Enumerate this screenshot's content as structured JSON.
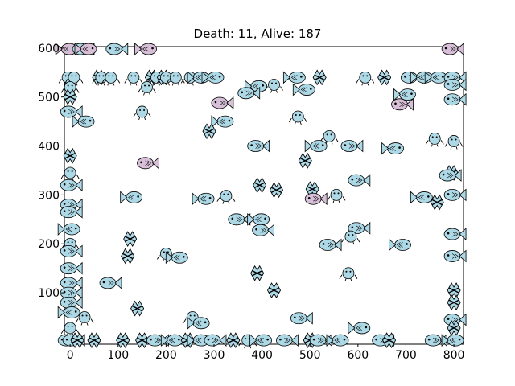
{
  "title": "Death: 11, Alive: 187",
  "axes": {
    "x_ticks": [
      0,
      100,
      200,
      300,
      400,
      500,
      600,
      700,
      800
    ],
    "y_ticks": [
      100,
      200,
      300,
      400,
      500,
      600
    ],
    "xlim": [
      -12,
      820
    ],
    "ylim": [
      -5,
      603
    ]
  },
  "colors": {
    "fish_body": "#add8e6",
    "fish_dead": "#d8bfd8",
    "fish_outline": "#000000",
    "axis": "#000000",
    "background": "#ffffff"
  },
  "chart_data": {
    "type": "scatter",
    "agents": [
      {
        "kind": "fish",
        "x": -5,
        "y": 598,
        "dir": "L",
        "state": "dead"
      },
      {
        "kind": "fish",
        "x": 25,
        "y": 598,
        "dir": "R",
        "state": "alive"
      },
      {
        "kind": "fish",
        "x": 35,
        "y": 598,
        "dir": "L",
        "state": "dead"
      },
      {
        "kind": "fish",
        "x": 95,
        "y": 598,
        "dir": "R",
        "state": "alive"
      },
      {
        "kind": "fish",
        "x": 160,
        "y": 598,
        "dir": "L",
        "state": "dead"
      },
      {
        "kind": "fish",
        "x": 795,
        "y": 598,
        "dir": "R",
        "state": "dead"
      },
      {
        "kind": "crab",
        "x": -5,
        "y": 540
      },
      {
        "kind": "crab",
        "x": 8,
        "y": 540
      },
      {
        "kind": "angler",
        "x": 60,
        "y": 540
      },
      {
        "kind": "crab",
        "x": 65,
        "y": 540
      },
      {
        "kind": "crab",
        "x": 85,
        "y": 540
      },
      {
        "kind": "crab",
        "x": 132,
        "y": 540
      },
      {
        "kind": "angler",
        "x": 170,
        "y": 540
      },
      {
        "kind": "crab",
        "x": 180,
        "y": 540
      },
      {
        "kind": "angler",
        "x": 195,
        "y": 540
      },
      {
        "kind": "crab",
        "x": 200,
        "y": 540
      },
      {
        "kind": "crab",
        "x": 220,
        "y": 540
      },
      {
        "kind": "crab",
        "x": 250,
        "y": 540
      },
      {
        "kind": "fish",
        "x": 270,
        "y": 540,
        "dir": "L",
        "state": "alive"
      },
      {
        "kind": "fish",
        "x": 300,
        "y": 540,
        "dir": "L",
        "state": "alive"
      },
      {
        "kind": "fish",
        "x": 470,
        "y": 540,
        "dir": "L",
        "state": "alive"
      },
      {
        "kind": "angler",
        "x": 520,
        "y": 540
      },
      {
        "kind": "crab",
        "x": 615,
        "y": 540
      },
      {
        "kind": "angler",
        "x": 655,
        "y": 540
      },
      {
        "kind": "fish",
        "x": 710,
        "y": 540,
        "dir": "R",
        "state": "alive"
      },
      {
        "kind": "fish",
        "x": 735,
        "y": 540,
        "dir": "L",
        "state": "alive"
      },
      {
        "kind": "fish",
        "x": 765,
        "y": 540,
        "dir": "L",
        "state": "alive"
      },
      {
        "kind": "fish",
        "x": 800,
        "y": 540,
        "dir": "R",
        "state": "alive"
      },
      {
        "kind": "crab",
        "x": 0,
        "y": 520
      },
      {
        "kind": "crab",
        "x": 160,
        "y": 520
      },
      {
        "kind": "fish",
        "x": 390,
        "y": 522,
        "dir": "L",
        "state": "alive"
      },
      {
        "kind": "crab",
        "x": 425,
        "y": 525
      },
      {
        "kind": "fish",
        "x": 490,
        "y": 515,
        "dir": "L",
        "state": "alive"
      },
      {
        "kind": "fish",
        "x": 800,
        "y": 525,
        "dir": "R",
        "state": "alive"
      },
      {
        "kind": "angler",
        "x": 0,
        "y": 500
      },
      {
        "kind": "fish",
        "x": 315,
        "y": 488,
        "dir": "R",
        "state": "dead"
      },
      {
        "kind": "fish",
        "x": 370,
        "y": 508,
        "dir": "R",
        "state": "alive"
      },
      {
        "kind": "fish",
        "x": 700,
        "y": 505,
        "dir": "L",
        "state": "alive"
      },
      {
        "kind": "fish",
        "x": 690,
        "y": 485,
        "dir": "R",
        "state": "dead"
      },
      {
        "kind": "fish",
        "x": 800,
        "y": 495,
        "dir": "R",
        "state": "alive"
      },
      {
        "kind": "fish",
        "x": 0,
        "y": 470,
        "dir": "R",
        "state": "alive"
      },
      {
        "kind": "crab",
        "x": 150,
        "y": 470
      },
      {
        "kind": "fish",
        "x": 30,
        "y": 450,
        "dir": "L",
        "state": "alive"
      },
      {
        "kind": "fish",
        "x": 320,
        "y": 450,
        "dir": "L",
        "state": "alive"
      },
      {
        "kind": "crab",
        "x": 475,
        "y": 460
      },
      {
        "kind": "angler",
        "x": 290,
        "y": 430
      },
      {
        "kind": "crab",
        "x": 540,
        "y": 420
      },
      {
        "kind": "crab",
        "x": 760,
        "y": 415
      },
      {
        "kind": "crab",
        "x": 800,
        "y": 410
      },
      {
        "kind": "fish",
        "x": 390,
        "y": 400,
        "dir": "R",
        "state": "alive"
      },
      {
        "kind": "fish",
        "x": 515,
        "y": 400,
        "dir": "L",
        "state": "alive"
      },
      {
        "kind": "fish",
        "x": 585,
        "y": 400,
        "dir": "R",
        "state": "alive"
      },
      {
        "kind": "fish",
        "x": 675,
        "y": 395,
        "dir": "L",
        "state": "alive"
      },
      {
        "kind": "angler",
        "x": 0,
        "y": 380
      },
      {
        "kind": "angler",
        "x": 490,
        "y": 370
      },
      {
        "kind": "fish",
        "x": 160,
        "y": 365,
        "dir": "R",
        "state": "dead"
      },
      {
        "kind": "crab",
        "x": 0,
        "y": 345
      },
      {
        "kind": "angler",
        "x": 795,
        "y": 345
      },
      {
        "kind": "fish",
        "x": 790,
        "y": 340,
        "dir": "R",
        "state": "alive"
      },
      {
        "kind": "fish",
        "x": 600,
        "y": 330,
        "dir": "R",
        "state": "alive"
      },
      {
        "kind": "angler",
        "x": 395,
        "y": 320
      },
      {
        "kind": "angler",
        "x": 430,
        "y": 310
      },
      {
        "kind": "fish",
        "x": 0,
        "y": 320,
        "dir": "R",
        "state": "alive"
      },
      {
        "kind": "angler",
        "x": 505,
        "y": 312
      },
      {
        "kind": "fish",
        "x": 130,
        "y": 295,
        "dir": "L",
        "state": "alive"
      },
      {
        "kind": "fish",
        "x": 280,
        "y": 292,
        "dir": "L",
        "state": "alive"
      },
      {
        "kind": "crab",
        "x": 325,
        "y": 298
      },
      {
        "kind": "fish",
        "x": 510,
        "y": 292,
        "dir": "R",
        "state": "dead"
      },
      {
        "kind": "crab",
        "x": 555,
        "y": 300
      },
      {
        "kind": "fish",
        "x": 735,
        "y": 295,
        "dir": "L",
        "state": "alive"
      },
      {
        "kind": "angler",
        "x": 765,
        "y": 285
      },
      {
        "kind": "fish",
        "x": 800,
        "y": 300,
        "dir": "R",
        "state": "alive"
      },
      {
        "kind": "fish",
        "x": 0,
        "y": 280,
        "dir": "R",
        "state": "alive"
      },
      {
        "kind": "fish",
        "x": 0,
        "y": 265,
        "dir": "R",
        "state": "alive"
      },
      {
        "kind": "fish",
        "x": 350,
        "y": 250,
        "dir": "R",
        "state": "alive"
      },
      {
        "kind": "fish",
        "x": 395,
        "y": 250,
        "dir": "L",
        "state": "alive"
      },
      {
        "kind": "fish",
        "x": 0,
        "y": 230,
        "dir": "L",
        "state": "alive"
      },
      {
        "kind": "fish",
        "x": 400,
        "y": 228,
        "dir": "R",
        "state": "alive"
      },
      {
        "kind": "fish",
        "x": 600,
        "y": 232,
        "dir": "R",
        "state": "alive"
      },
      {
        "kind": "crab",
        "x": 585,
        "y": 215
      },
      {
        "kind": "fish",
        "x": 800,
        "y": 220,
        "dir": "R",
        "state": "alive"
      },
      {
        "kind": "angler",
        "x": 125,
        "y": 210
      },
      {
        "kind": "crab",
        "x": 0,
        "y": 200
      },
      {
        "kind": "fish",
        "x": 540,
        "y": 198,
        "dir": "R",
        "state": "alive"
      },
      {
        "kind": "fish",
        "x": 690,
        "y": 198,
        "dir": "L",
        "state": "alive"
      },
      {
        "kind": "fish",
        "x": 0,
        "y": 185,
        "dir": "R",
        "state": "alive"
      },
      {
        "kind": "crab",
        "x": 200,
        "y": 180
      },
      {
        "kind": "fish",
        "x": 225,
        "y": 172,
        "dir": "L",
        "state": "alive"
      },
      {
        "kind": "angler",
        "x": 120,
        "y": 175
      },
      {
        "kind": "fish",
        "x": 800,
        "y": 175,
        "dir": "R",
        "state": "alive"
      },
      {
        "kind": "fish",
        "x": 0,
        "y": 150,
        "dir": "R",
        "state": "alive"
      },
      {
        "kind": "angler",
        "x": 390,
        "y": 140
      },
      {
        "kind": "crab",
        "x": 580,
        "y": 140
      },
      {
        "kind": "fish",
        "x": 0,
        "y": 120,
        "dir": "R",
        "state": "alive"
      },
      {
        "kind": "fish",
        "x": 82,
        "y": 120,
        "dir": "R",
        "state": "alive"
      },
      {
        "kind": "angler",
        "x": 425,
        "y": 105
      },
      {
        "kind": "angler",
        "x": 800,
        "y": 105
      },
      {
        "kind": "fish",
        "x": 0,
        "y": 100,
        "dir": "R",
        "state": "alive"
      },
      {
        "kind": "fish",
        "x": 0,
        "y": 80,
        "dir": "R",
        "state": "alive"
      },
      {
        "kind": "angler",
        "x": 800,
        "y": 80
      },
      {
        "kind": "angler",
        "x": 140,
        "y": 68
      },
      {
        "kind": "fish",
        "x": 0,
        "y": 60,
        "dir": "L",
        "state": "alive"
      },
      {
        "kind": "crab",
        "x": 30,
        "y": 50
      },
      {
        "kind": "crab",
        "x": 255,
        "y": 50
      },
      {
        "kind": "fish",
        "x": 270,
        "y": 38,
        "dir": "L",
        "state": "alive"
      },
      {
        "kind": "fish",
        "x": 480,
        "y": 48,
        "dir": "R",
        "state": "alive"
      },
      {
        "kind": "fish",
        "x": 800,
        "y": 45,
        "dir": "R",
        "state": "alive"
      },
      {
        "kind": "crab",
        "x": 0,
        "y": 28
      },
      {
        "kind": "fish",
        "x": 605,
        "y": 28,
        "dir": "L",
        "state": "alive"
      },
      {
        "kind": "angler",
        "x": 800,
        "y": 28
      },
      {
        "kind": "fish",
        "x": -5,
        "y": 3,
        "dir": "R",
        "state": "alive"
      },
      {
        "kind": "fish",
        "x": 5,
        "y": 3,
        "dir": "R",
        "state": "alive"
      },
      {
        "kind": "angler",
        "x": 15,
        "y": 3
      },
      {
        "kind": "angler",
        "x": 50,
        "y": 3
      },
      {
        "kind": "angler",
        "x": 110,
        "y": 3
      },
      {
        "kind": "angler",
        "x": 150,
        "y": 3
      },
      {
        "kind": "fish",
        "x": 180,
        "y": 3,
        "dir": "R",
        "state": "alive"
      },
      {
        "kind": "fish",
        "x": 215,
        "y": 3,
        "dir": "L",
        "state": "alive"
      },
      {
        "kind": "angler",
        "x": 245,
        "y": 3
      },
      {
        "kind": "fish",
        "x": 270,
        "y": 3,
        "dir": "L",
        "state": "alive"
      },
      {
        "kind": "fish",
        "x": 300,
        "y": 3,
        "dir": "R",
        "state": "alive"
      },
      {
        "kind": "angler",
        "x": 340,
        "y": 3
      },
      {
        "kind": "crab",
        "x": 370,
        "y": 3
      },
      {
        "kind": "fish",
        "x": 400,
        "y": 3,
        "dir": "L",
        "state": "alive"
      },
      {
        "kind": "fish",
        "x": 450,
        "y": 3,
        "dir": "R",
        "state": "alive"
      },
      {
        "kind": "angler",
        "x": 500,
        "y": 3
      },
      {
        "kind": "fish",
        "x": 520,
        "y": 3,
        "dir": "R",
        "state": "alive"
      },
      {
        "kind": "fish",
        "x": 560,
        "y": 3,
        "dir": "L",
        "state": "alive"
      },
      {
        "kind": "fish",
        "x": 650,
        "y": 3,
        "dir": "R",
        "state": "alive"
      },
      {
        "kind": "angler",
        "x": 665,
        "y": 3
      },
      {
        "kind": "fish",
        "x": 760,
        "y": 3,
        "dir": "R",
        "state": "alive"
      },
      {
        "kind": "fish",
        "x": 800,
        "y": 3,
        "dir": "L",
        "state": "alive"
      }
    ]
  }
}
